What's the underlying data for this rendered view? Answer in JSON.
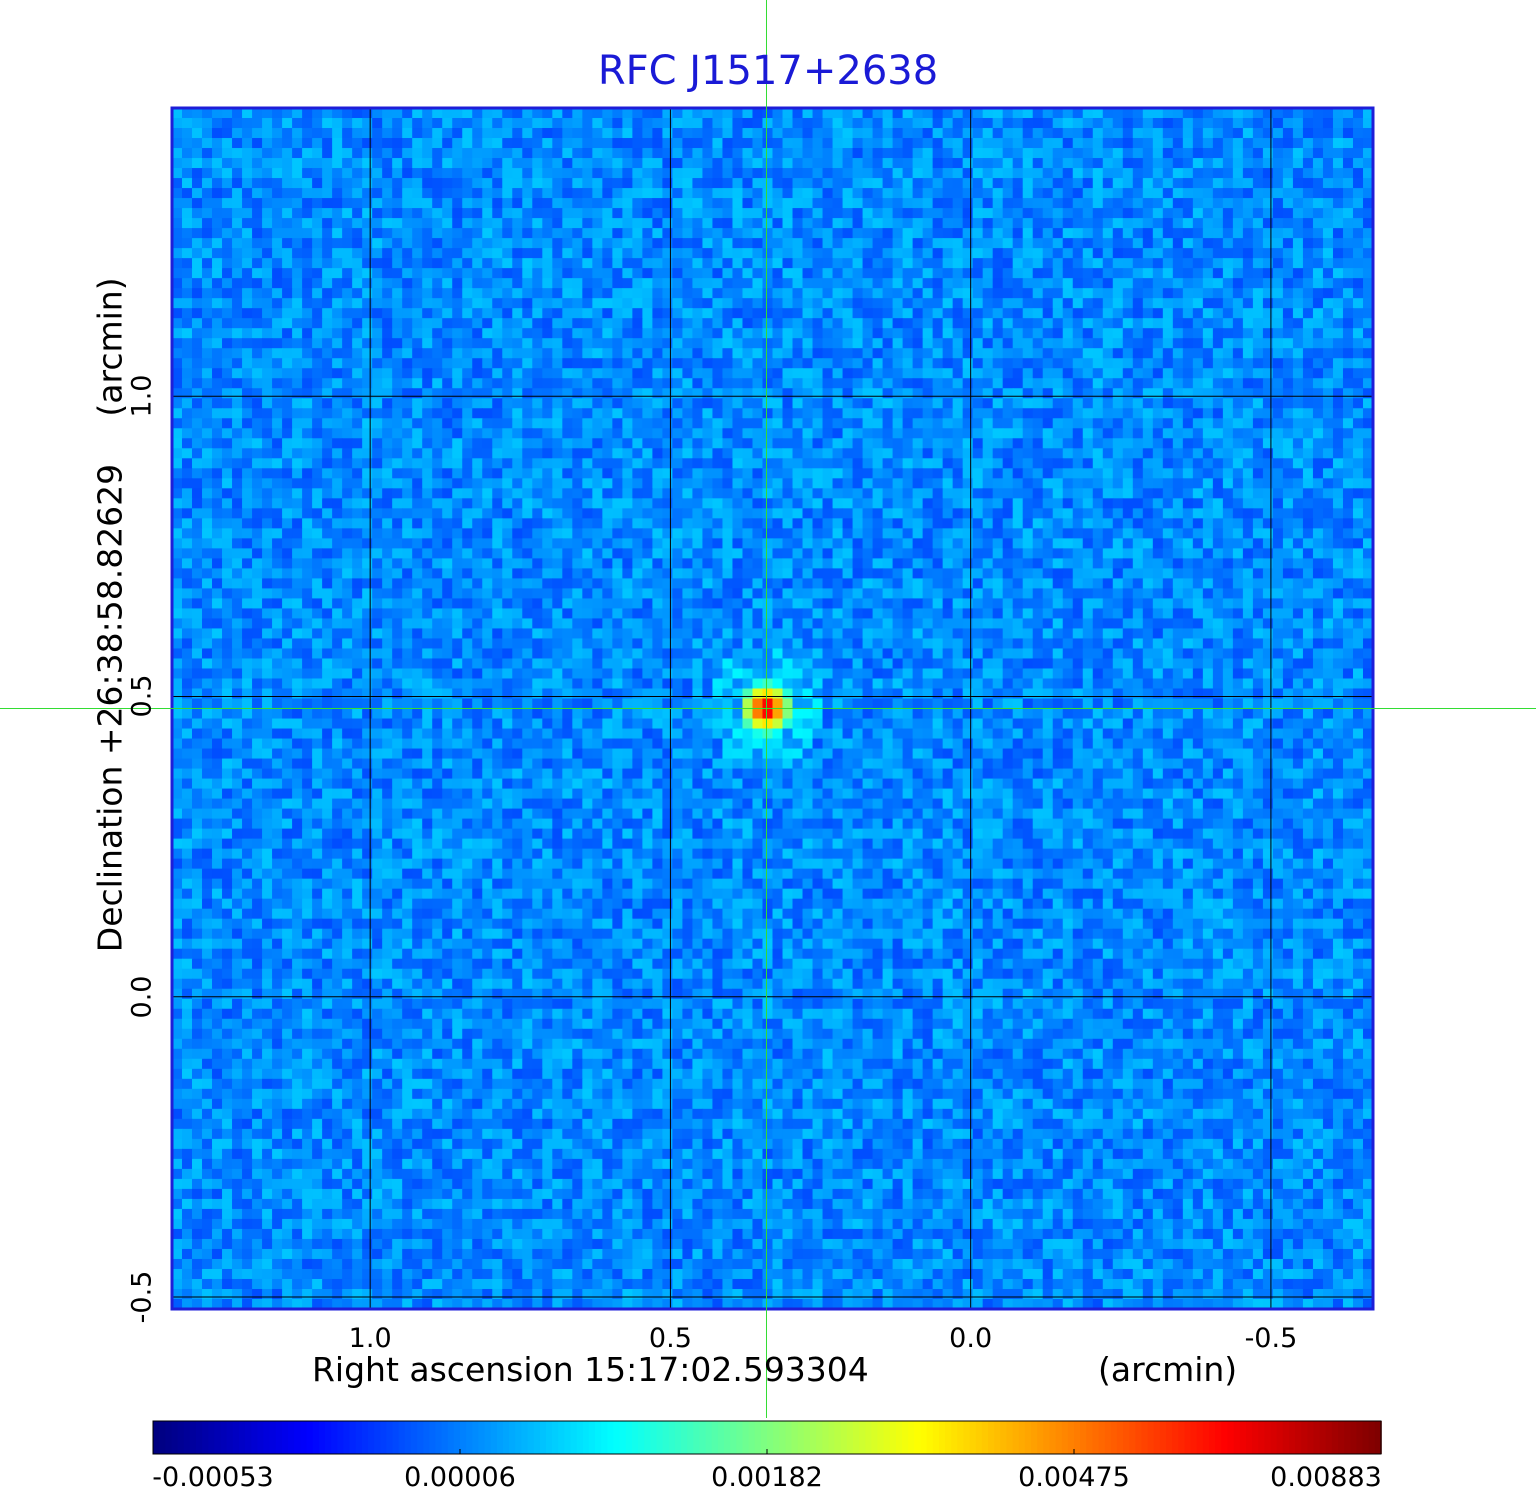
{
  "chart_data": {
    "type": "heatmap",
    "title": "RFC J1517+2638",
    "xlabel": "Right ascension  15:17:02.593304",
    "xunit": "(arcmin)",
    "ylabel": "Declination  +26:38:58.82629",
    "yunit": "(arcmin)",
    "xticks": [
      1.0,
      0.5,
      0.0,
      -0.5
    ],
    "xtick_labels": [
      "1.0",
      "0.5",
      "0.0",
      "-0.5"
    ],
    "yticks": [
      1.0,
      0.5,
      0.0,
      -0.5
    ],
    "ytick_labels": [
      "1.0",
      "0.5",
      "0.0",
      "-0.5"
    ],
    "xlim": [
      1.33,
      -0.67
    ],
    "ylim": [
      -0.52,
      1.48
    ],
    "grid": true,
    "crosshair": {
      "x": 0.34,
      "y": 0.48
    },
    "colorbar": {
      "colormap": "jet",
      "tick_labels": [
        "-0.00053",
        "0.00006",
        "0.00182",
        "0.00475",
        "0.00883"
      ],
      "min": -0.00053,
      "max": 0.00883
    },
    "source": {
      "x": 0.34,
      "y": 0.48,
      "peak": 0.00883
    },
    "colors": {
      "title": "#1a1ad6",
      "frame": "#1e1ed8",
      "grid": "#000000",
      "crosshair": "#33dd33"
    }
  }
}
